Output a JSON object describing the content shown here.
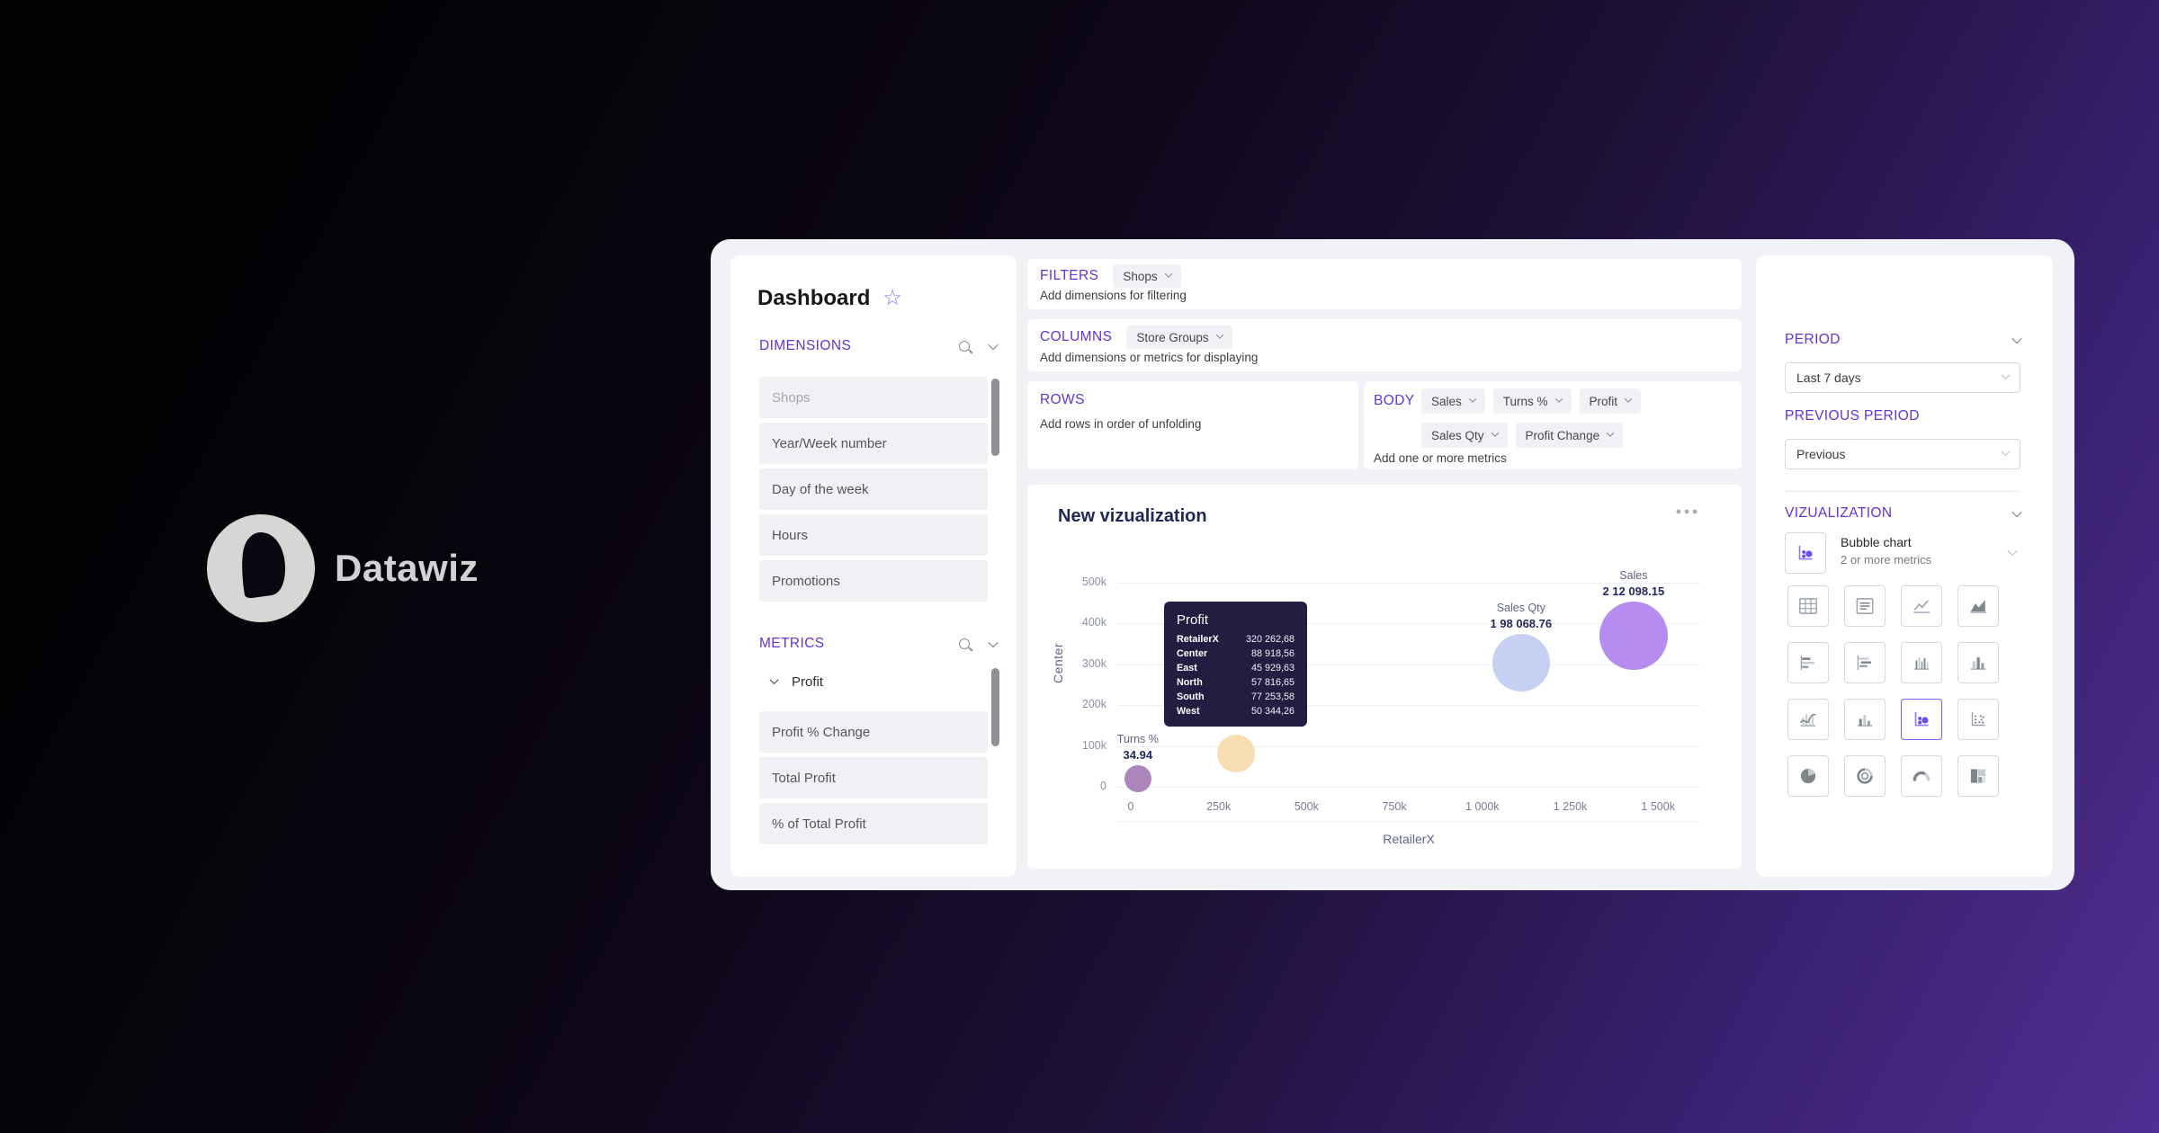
{
  "brand": {
    "name": "Datawiz"
  },
  "sidebar": {
    "title": "Dashboard",
    "dimensions": {
      "header": "DIMENSIONS",
      "items": [
        {
          "label": "Shops",
          "muted": true
        },
        {
          "label": "Year/Week number",
          "muted": false
        },
        {
          "label": "Day of the week",
          "muted": false
        },
        {
          "label": "Hours",
          "muted": false
        },
        {
          "label": "Promotions",
          "muted": false
        }
      ]
    },
    "metrics": {
      "header": "METRICS",
      "group": "Profit",
      "items": [
        {
          "label": "Profit % Change"
        },
        {
          "label": "Total Profit"
        },
        {
          "label": "% of Total Profit"
        }
      ]
    }
  },
  "builder": {
    "filters": {
      "header": "FILTERS",
      "chips": [
        "Shops"
      ],
      "hint": "Add dimensions for filtering"
    },
    "columns": {
      "header": "COLUMNS",
      "chips": [
        "Store Groups"
      ],
      "hint": "Add dimensions or metrics for displaying"
    },
    "rows": {
      "header": "ROWS",
      "hint": "Add rows in order of unfolding"
    },
    "body": {
      "header": "BODY",
      "chips_row1": [
        "Sales",
        "Turns %",
        "Profit"
      ],
      "chips_row2": [
        "Sales Qty",
        "Profit Change"
      ],
      "hint": "Add one or more metrics"
    }
  },
  "chart_data": {
    "type": "bubble",
    "title": "New vizualization",
    "xlabel": "RetailerX",
    "ylabel": "Center",
    "x_ticks": [
      "0",
      "250k",
      "500k",
      "750k",
      "1 000k",
      "1 250k",
      "1 500k"
    ],
    "y_ticks": [
      "0",
      "100k",
      "200k",
      "300k",
      "400k",
      "500k"
    ],
    "x_range": [
      0,
      1585000
    ],
    "y_range": [
      0,
      520000
    ],
    "grid": "horizontal",
    "legend": "none",
    "bubbles": [
      {
        "name": "Turns %",
        "value_label": "34.94",
        "x": 20000,
        "y": 20000,
        "r": 15,
        "color": "#ac86bb",
        "labels_visible": true
      },
      {
        "name": "Profit",
        "value_label": "320 262,68",
        "x": 300000,
        "y": 82000,
        "r": 21,
        "color": "#f8dcb2",
        "labels_visible": false
      },
      {
        "name": "Sales Qty",
        "value_label": "1 98 068.76",
        "x": 1110000,
        "y": 305000,
        "r": 32,
        "color": "#c5d0f3",
        "labels_visible": true
      },
      {
        "name": "Sales",
        "value_label": "2 12 098.15",
        "x": 1430000,
        "y": 370000,
        "r": 38,
        "color": "#b58cf0",
        "labels_visible": true
      }
    ],
    "tooltip": {
      "title": "Profit",
      "rows": [
        {
          "label": "RetailerX",
          "value": "320 262,68"
        },
        {
          "label": "Center",
          "value": "88 918,56"
        },
        {
          "label": "East",
          "value": "45 929,63"
        },
        {
          "label": "North",
          "value": "57 816,65"
        },
        {
          "label": "South",
          "value": "77 253,58"
        },
        {
          "label": "West",
          "value": "50 344,26"
        }
      ]
    }
  },
  "panel": {
    "period": {
      "header": "PERIOD",
      "value": "Last 7 days"
    },
    "previous_period": {
      "header": "PREVIOUS PERIOD",
      "value": "Previous"
    },
    "visualization": {
      "header": "VIZUALIZATION",
      "selected": {
        "label": "Bubble chart",
        "sublabel": "2 or more metrics"
      },
      "icons": [
        {
          "name": "table-chart",
          "selected": false
        },
        {
          "name": "report-card",
          "selected": false
        },
        {
          "name": "line-chart",
          "selected": false
        },
        {
          "name": "area-chart",
          "selected": false
        },
        {
          "name": "bar-horizontal",
          "selected": false
        },
        {
          "name": "bar-horizontal-stacked",
          "selected": false
        },
        {
          "name": "column-thin",
          "selected": false
        },
        {
          "name": "column-chart",
          "selected": false
        },
        {
          "name": "combo-chart",
          "selected": false
        },
        {
          "name": "column-chart-2",
          "selected": false
        },
        {
          "name": "bubble-chart",
          "selected": true
        },
        {
          "name": "scatter-plot",
          "selected": false
        },
        {
          "name": "pie-chart",
          "selected": false
        },
        {
          "name": "radial-chart",
          "selected": false
        },
        {
          "name": "gauge-chart",
          "selected": false
        },
        {
          "name": "treemap-chart",
          "selected": false
        }
      ]
    }
  },
  "colors": {
    "accent": "#6434d6",
    "navy": "#232a5e",
    "tooltip_bg": "#221e41",
    "panel_bg": "#f1f2f7"
  }
}
